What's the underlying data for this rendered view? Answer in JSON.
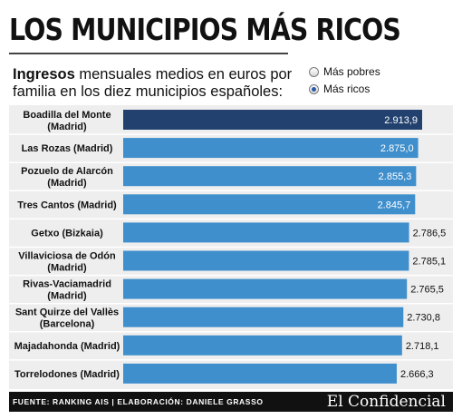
{
  "header": {
    "title": "LOS MUNICIPIOS MÁS RICOS",
    "subtitle_bold": "Ingresos",
    "subtitle_rest": " mensuales medios en euros por familia en los diez municipios españoles:"
  },
  "controls": {
    "options": [
      {
        "label": "Más pobres",
        "selected": false
      },
      {
        "label": "Más ricos",
        "selected": true
      }
    ]
  },
  "chart_data": {
    "type": "bar",
    "orientation": "horizontal",
    "categories": [
      [
        "Boadilla del Monte",
        "(Madrid)"
      ],
      [
        "Las Rozas (Madrid)"
      ],
      [
        "Pozuelo de Alarcón",
        "(Madrid)"
      ],
      [
        "Tres Cantos (Madrid)"
      ],
      [
        "Getxo (Bizkaia)"
      ],
      [
        "Villaviciosa de Odón",
        "(Madrid)"
      ],
      [
        "Rivas-Vaciamadrid",
        "(Madrid)"
      ],
      [
        "Sant Quirze del Vallès",
        "(Barcelona)"
      ],
      [
        "Majadahonda (Madrid)"
      ],
      [
        "Torrelodones (Madrid)"
      ]
    ],
    "values": [
      2913.9,
      2875.0,
      2855.3,
      2845.7,
      2786.5,
      2785.1,
      2765.5,
      2730.8,
      2718.1,
      2666.3
    ],
    "value_labels": [
      "2.913,9",
      "2.875,0",
      "2.855,3",
      "2.845,7",
      "2.786,5",
      "2.785,1",
      "2.765,5",
      "2.730,8",
      "2.718,1",
      "2.666,3"
    ],
    "highlight_index": 0,
    "colors": {
      "bar": "#3f8fcc",
      "highlight": "#22416e",
      "background": "#eeeeee"
    }
  },
  "footer": {
    "source": "FUENTE: RANKING AIS | ELABORACIÓN: DANIELE GRASSO",
    "logo": "El Confidencial"
  }
}
